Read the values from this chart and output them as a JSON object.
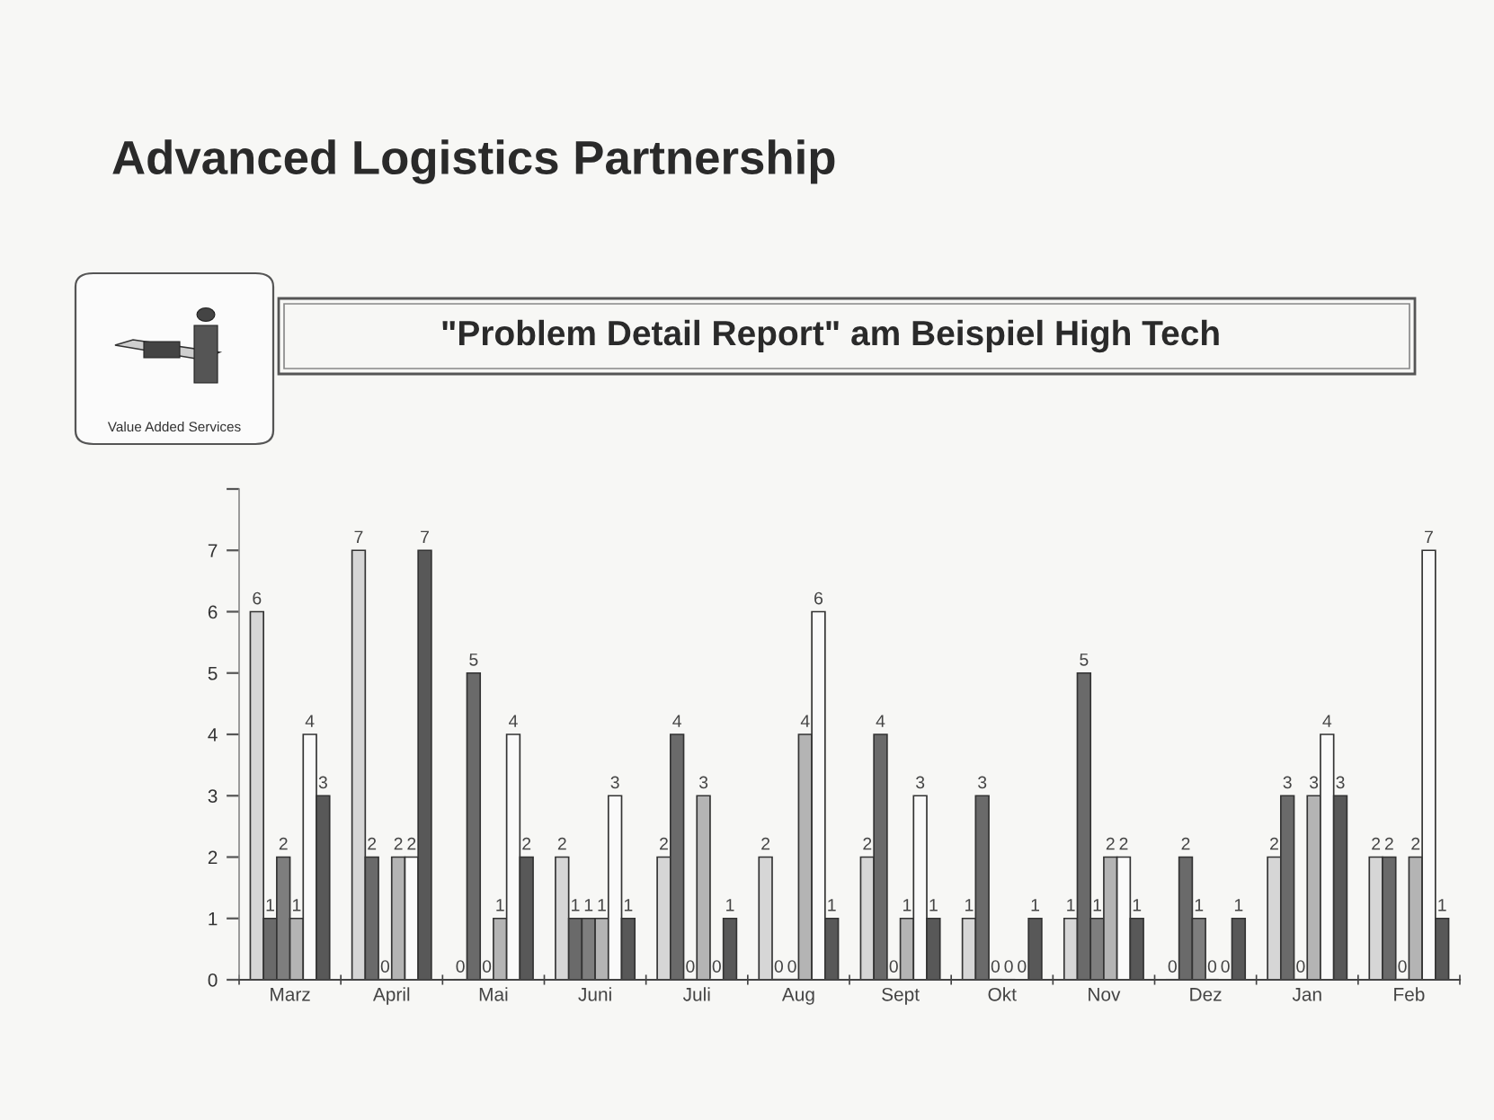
{
  "chart_data": {
    "type": "bar",
    "title": "Advanced Logistics Partnership",
    "subtitle": "\"Problem Detail Report\" am Beispiel High Tech",
    "annotations": [
      "Value Added Services"
    ],
    "categories": [
      "Marz",
      "April",
      "Mai",
      "Juni",
      "Juli",
      "Aug",
      "Sept",
      "Okt",
      "Nov",
      "Dez",
      "Jan",
      "Feb"
    ],
    "series": [
      {
        "color": "#d6d6d6",
        "values": [
          6,
          7,
          0,
          2,
          2,
          2,
          2,
          1,
          1,
          0,
          2,
          2
        ]
      },
      {
        "color": "#6a6a6a",
        "values": [
          1,
          2,
          5,
          1,
          4,
          0,
          4,
          3,
          5,
          2,
          3,
          2
        ]
      },
      {
        "color": "#7e7e7e",
        "values": [
          2,
          0,
          0,
          1,
          0,
          0,
          0,
          0,
          1,
          1,
          0,
          0
        ]
      },
      {
        "color": "#b4b4b4",
        "values": [
          1,
          2,
          1,
          1,
          3,
          4,
          1,
          0,
          2,
          0,
          3,
          2
        ]
      },
      {
        "color": "#fafafa",
        "values": [
          4,
          2,
          4,
          3,
          0,
          6,
          3,
          0,
          2,
          0,
          4,
          7
        ]
      },
      {
        "color": "#585858",
        "values": [
          3,
          7,
          2,
          1,
          1,
          1,
          1,
          1,
          1,
          1,
          3,
          1
        ]
      }
    ],
    "ylim": [
      0,
      8
    ],
    "yticks": [
      0,
      1,
      2,
      3,
      4,
      5,
      6,
      7,
      {
        "value": 8,
        "label": null
      }
    ],
    "data_labels": true
  }
}
